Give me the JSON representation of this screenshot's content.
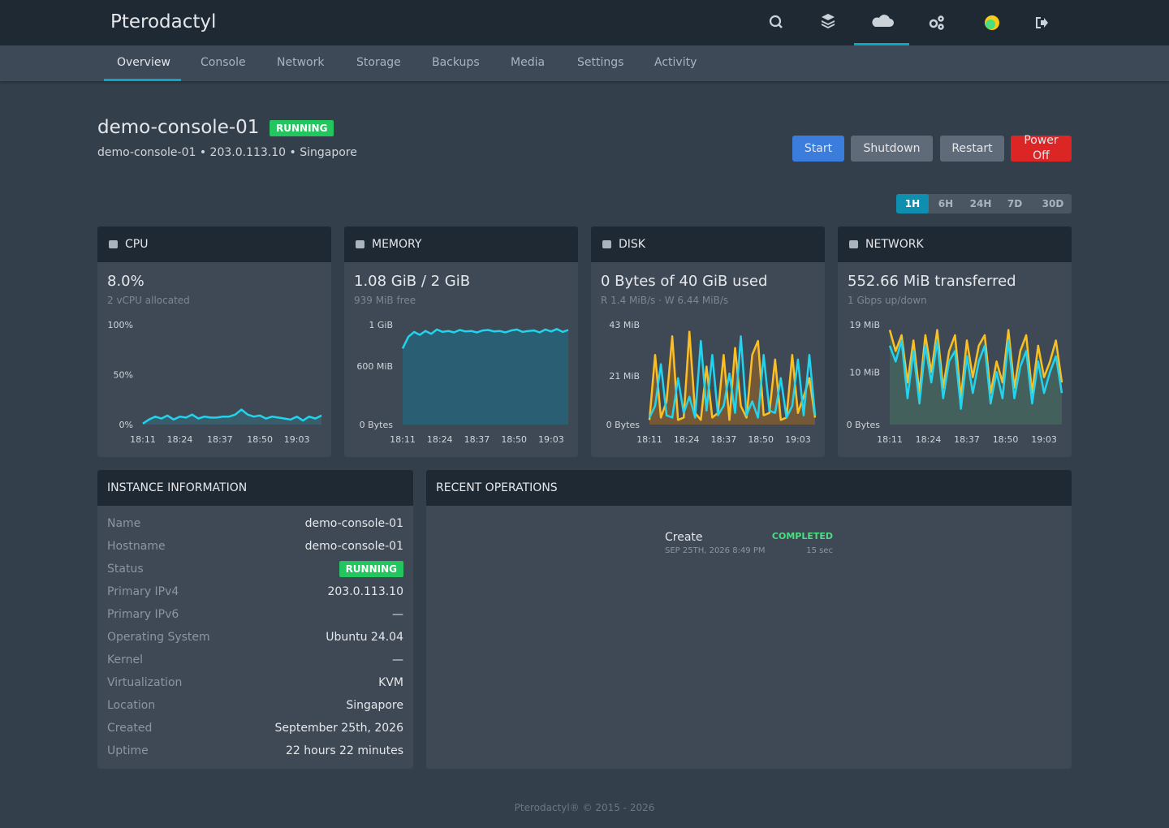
{
  "header": {
    "brand": "Pterodactyl"
  },
  "tabs": [
    "Overview",
    "Console",
    "Network",
    "Storage",
    "Backups",
    "Media",
    "Settings",
    "Activity"
  ],
  "server": {
    "name": "demo-console-01",
    "status": "RUNNING",
    "subtitle": "demo-console-01 • 203.0.113.10 • Singapore"
  },
  "actions": [
    "Start",
    "Shutdown",
    "Restart",
    "Power Off"
  ],
  "ranges": [
    "1H",
    "6H",
    "24H",
    "7D",
    "30D"
  ],
  "stats": [
    {
      "title": "CPU",
      "value": "8.0%",
      "sub": "2 vCPU allocated",
      "chart": {
        "type": "line",
        "ylim": [
          0,
          100
        ],
        "yticks": [
          {
            "value": 0,
            "label": "0%"
          },
          {
            "value": 50,
            "label": "50%"
          },
          {
            "value": 100,
            "label": "100%"
          }
        ],
        "xticks": [
          {
            "value": 0,
            "label": "18:11"
          },
          {
            "value": 6,
            "label": "18:24"
          },
          {
            "value": 12.5,
            "label": "18:37"
          },
          {
            "value": 19,
            "label": "18:50"
          },
          {
            "value": 25,
            "label": "19:03"
          }
        ],
        "fill": "rgba(34,211,238,0.15)",
        "series": [
          {
            "color": "#22d3ee",
            "values": [
              1,
              5,
              8,
              6,
              9,
              5,
              8,
              7,
              10,
              6,
              8,
              7,
              7,
              8,
              8,
              10,
              15,
              10,
              8,
              9,
              6,
              8,
              7,
              6,
              5,
              8,
              4,
              8,
              6,
              9
            ]
          }
        ]
      }
    },
    {
      "title": "MEMORY",
      "value": "1.08 GiB / 2 GiB",
      "sub": "939 MiB free",
      "chart": {
        "type": "area",
        "ylim": [
          0,
          1024
        ],
        "yticks": [
          {
            "value": 0,
            "label": "0 Bytes"
          },
          {
            "value": 600,
            "label": "600 MiB"
          },
          {
            "value": 1024,
            "label": "1 GiB"
          }
        ],
        "xticks": [
          {
            "value": 0,
            "label": "18:11"
          },
          {
            "value": 6.5,
            "label": "18:24"
          },
          {
            "value": 13,
            "label": "18:37"
          },
          {
            "value": 19.5,
            "label": "18:50"
          },
          {
            "value": 26,
            "label": "19:03"
          }
        ],
        "fill": "#2a5e72",
        "series": [
          {
            "color": "#22d3ee",
            "values": [
              780,
              900,
              950,
              920,
              960,
              930,
              975,
              950,
              960,
              945,
              970,
              955,
              960,
              945,
              965,
              970,
              955,
              960,
              945,
              965,
              975,
              950,
              960,
              965,
              945,
              975,
              955,
              980,
              950,
              970
            ]
          }
        ]
      }
    },
    {
      "title": "DISK",
      "value": "0 Bytes of 40 GiB used",
      "sub": "R 1.4 MiB/s · W 6.44 MiB/s",
      "chart": {
        "type": "area",
        "ylim": [
          0,
          43
        ],
        "yticks": [
          {
            "value": 0,
            "label": "0 Bytes"
          },
          {
            "value": 21,
            "label": "21 MiB"
          },
          {
            "value": 43,
            "label": "43 MiB"
          }
        ],
        "xticks": [
          {
            "value": 0,
            "label": "18:11"
          },
          {
            "value": 6.5,
            "label": "18:24"
          },
          {
            "value": 13,
            "label": "18:37"
          },
          {
            "value": 19.5,
            "label": "18:50"
          },
          {
            "value": 26,
            "label": "19:03"
          }
        ],
        "fill": "rgba(217,119,6,0.35)",
        "series": [
          {
            "color": "#fbbf24",
            "values": [
              2,
              30,
              3,
              10,
              38,
              2,
              3,
              40,
              5,
              2,
              25,
              3,
              5,
              30,
              2,
              33,
              8,
              3,
              30,
              36,
              4,
              5,
              28,
              2,
              3,
              30,
              5,
              12,
              20,
              3
            ]
          },
          {
            "color": "#22d3ee",
            "values": [
              3,
              8,
              26,
              4,
              3,
              20,
              5,
              12,
              3,
              36,
              6,
              30,
              4,
              8,
              22,
              5,
              38,
              4,
              10,
              3,
              30,
              6,
              5,
              20,
              3,
              8,
              28,
              4,
              30,
              4
            ]
          }
        ]
      }
    },
    {
      "title": "NETWORK",
      "value": "552.66 MiB transferred",
      "sub": "1 Gbps up/down",
      "chart": {
        "type": "area",
        "ylim": [
          0,
          19
        ],
        "yticks": [
          {
            "value": 0,
            "label": "0 Bytes"
          },
          {
            "value": 10,
            "label": "10 MiB"
          },
          {
            "value": 19,
            "label": "19 MiB"
          }
        ],
        "xticks": [
          {
            "value": 0,
            "label": "18:11"
          },
          {
            "value": 6.5,
            "label": "18:24"
          },
          {
            "value": 13,
            "label": "18:37"
          },
          {
            "value": 19.5,
            "label": "18:50"
          },
          {
            "value": 26,
            "label": "19:03"
          }
        ],
        "fill": "rgba(74,120,100,0.5)",
        "series": [
          {
            "color": "#fbbf24",
            "values": [
              18,
              14,
              17,
              8,
              16,
              6,
              17,
              10,
              18,
              7,
              14,
              17,
              5,
              16,
              9,
              15,
              17,
              6,
              12,
              8,
              18,
              7,
              14,
              17,
              6,
              15,
              9,
              12,
              16,
              8
            ]
          },
          {
            "color": "#22d3ee",
            "values": [
              15,
              12,
              16,
              5,
              14,
              4,
              15,
              8,
              16,
              5,
              12,
              14,
              3,
              13,
              6,
              12,
              15,
              4,
              10,
              5,
              16,
              5,
              11,
              14,
              4,
              12,
              6,
              10,
              13,
              6
            ]
          }
        ]
      }
    }
  ],
  "instance": {
    "title": "INSTANCE INFORMATION",
    "rows": [
      [
        "Name",
        "demo-console-01"
      ],
      [
        "Hostname",
        "demo-console-01"
      ],
      [
        "Status",
        "RUNNING"
      ],
      [
        "Primary IPv4",
        "203.0.113.10"
      ],
      [
        "Primary IPv6",
        "—"
      ],
      [
        "Operating System",
        "Ubuntu 24.04"
      ],
      [
        "Kernel",
        "—"
      ],
      [
        "Virtualization",
        "KVM"
      ],
      [
        "Location",
        "Singapore"
      ],
      [
        "Created",
        "September 25th, 2026"
      ],
      [
        "Uptime",
        "22 hours 22 minutes"
      ]
    ]
  },
  "operations": {
    "title": "RECENT OPERATIONS",
    "items": [
      {
        "name": "Create",
        "date": "SEP 25TH, 2026 8:49 PM",
        "status": "COMPLETED",
        "duration": "15 sec"
      }
    ]
  },
  "footer": "Pterodactyl® © 2015 - 2026"
}
